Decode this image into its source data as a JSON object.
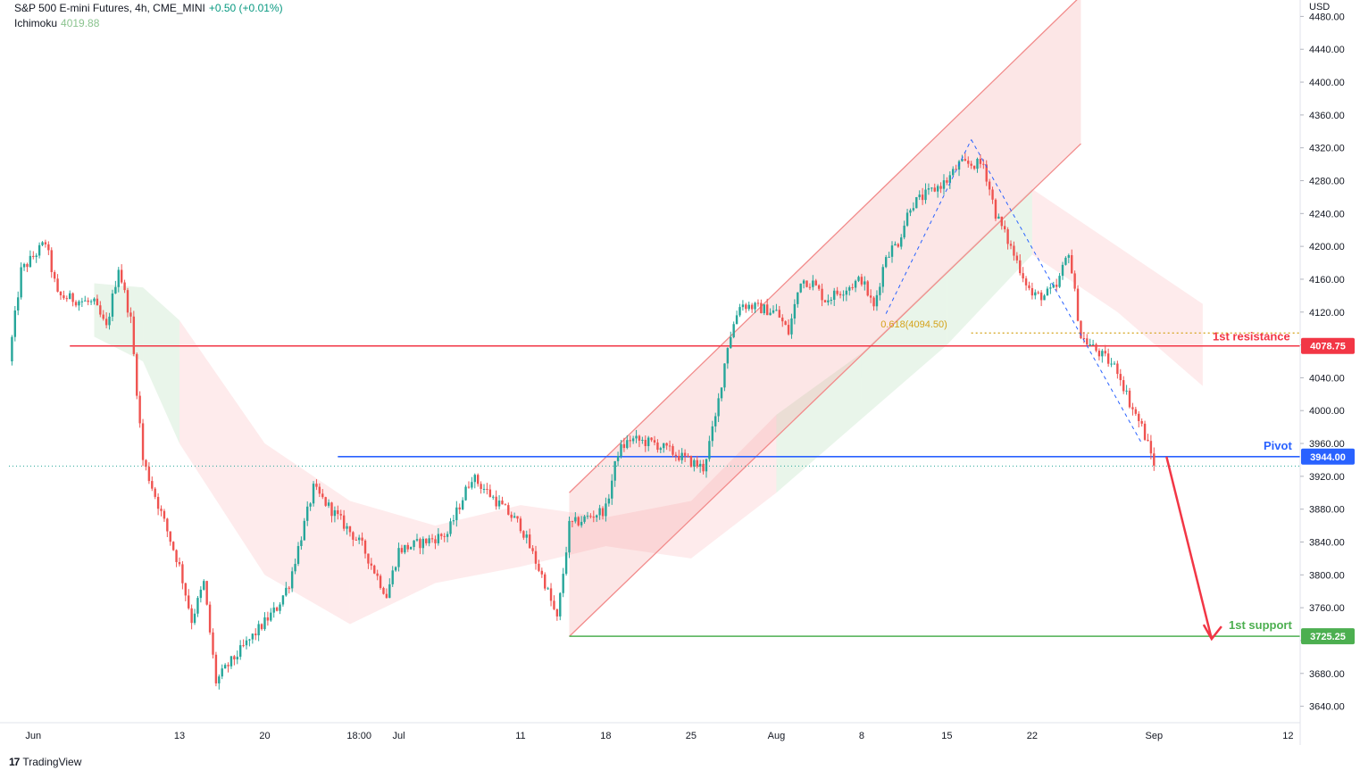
{
  "header": {
    "symbol_line": "S&P 500 E-mini Futures, 4h, CME_MINI",
    "change": "+0.50 (+0.01%)",
    "indicator_name": "Ichimoku",
    "indicator_value": "4019.88"
  },
  "brand": {
    "logo_text": "17",
    "name": "TradingView"
  },
  "colors": {
    "up": "#26a69a",
    "down": "#ef5350",
    "resistance": "#f23645",
    "pivot": "#2962ff",
    "support": "#4caf50",
    "fib": "#d4a21a",
    "channel": "#f28b8b"
  },
  "chart_data": {
    "type": "candlestick",
    "currency_label": "USD",
    "y_range": [
      3620,
      4500
    ],
    "y_ticks": [
      "4480.00",
      "4440.00",
      "4400.00",
      "4360.00",
      "4320.00",
      "4280.00",
      "4240.00",
      "4200.00",
      "4160.00",
      "4120.00",
      "4080.00",
      "4040.00",
      "4000.00",
      "3960.00",
      "3920.00",
      "3880.00",
      "3840.00",
      "3800.00",
      "3760.00",
      "3720.00",
      "3680.00",
      "3640.00"
    ],
    "x_ticks": [
      "Jun",
      "13",
      "20",
      "18:00",
      "Jul",
      "11",
      "18",
      "25",
      "Aug",
      "8",
      "15",
      "22",
      "Sep",
      "12"
    ],
    "price_anchors": [
      [
        "2022-05-30",
        4060
      ],
      [
        "2022-05-31",
        4170
      ],
      [
        "2022-06-02",
        4205
      ],
      [
        "2022-06-03",
        4140
      ],
      [
        "2022-06-06",
        4130
      ],
      [
        "2022-06-07",
        4100
      ],
      [
        "2022-06-08",
        4175
      ],
      [
        "2022-06-09",
        4110
      ],
      [
        "2022-06-10",
        3940
      ],
      [
        "2022-06-13",
        3810
      ],
      [
        "2022-06-14",
        3745
      ],
      [
        "2022-06-15",
        3790
      ],
      [
        "2022-06-16",
        3670
      ],
      [
        "2022-06-17",
        3690
      ],
      [
        "2022-06-21",
        3760
      ],
      [
        "2022-06-22",
        3790
      ],
      [
        "2022-06-24",
        3905
      ],
      [
        "2022-06-28",
        3835
      ],
      [
        "2022-06-30",
        3775
      ],
      [
        "2022-07-01",
        3830
      ],
      [
        "2022-07-05",
        3850
      ],
      [
        "2022-07-07",
        3920
      ],
      [
        "2022-07-08",
        3905
      ],
      [
        "2022-07-11",
        3860
      ],
      [
        "2022-07-13",
        3790
      ],
      [
        "2022-07-14",
        3745
      ],
      [
        "2022-07-15",
        3860
      ],
      [
        "2022-07-18",
        3880
      ],
      [
        "2022-07-19",
        3950
      ],
      [
        "2022-07-20",
        3965
      ],
      [
        "2022-07-22",
        3960
      ],
      [
        "2022-07-26",
        3930
      ],
      [
        "2022-07-27",
        3990
      ],
      [
        "2022-07-28",
        4080
      ],
      [
        "2022-07-29",
        4130
      ],
      [
        "2022-08-01",
        4120
      ],
      [
        "2022-08-02",
        4095
      ],
      [
        "2022-08-03",
        4160
      ],
      [
        "2022-08-04",
        4155
      ],
      [
        "2022-08-05",
        4135
      ],
      [
        "2022-08-08",
        4160
      ],
      [
        "2022-08-09",
        4125
      ],
      [
        "2022-08-10",
        4190
      ],
      [
        "2022-08-11",
        4205
      ],
      [
        "2022-08-12",
        4250
      ],
      [
        "2022-08-15",
        4280
      ],
      [
        "2022-08-16",
        4300
      ],
      [
        "2022-08-17",
        4300
      ],
      [
        "2022-08-18",
        4300
      ],
      [
        "2022-08-19",
        4240
      ],
      [
        "2022-08-22",
        4140
      ],
      [
        "2022-08-23",
        4140
      ],
      [
        "2022-08-24",
        4150
      ],
      [
        "2022-08-25",
        4195
      ],
      [
        "2022-08-26",
        4090
      ],
      [
        "2022-08-29",
        4050
      ],
      [
        "2022-08-30",
        4010
      ],
      [
        "2022-08-31",
        3980
      ],
      [
        "2022-09-01",
        3936
      ]
    ],
    "ichimoku_cloud_upper": [
      [
        "2022-06-06",
        4155
      ],
      [
        "2022-06-10",
        4150
      ],
      [
        "2022-06-13",
        4110
      ],
      [
        "2022-06-20",
        3960
      ],
      [
        "2022-06-27",
        3890
      ],
      [
        "2022-07-04",
        3860
      ],
      [
        "2022-07-11",
        3885
      ],
      [
        "2022-07-18",
        3870
      ],
      [
        "2022-07-25",
        3890
      ],
      [
        "2022-08-01",
        3995
      ],
      [
        "2022-08-08",
        4070
      ],
      [
        "2022-08-15",
        4170
      ],
      [
        "2022-08-22",
        4270
      ],
      [
        "2022-08-29",
        4200
      ],
      [
        "2022-09-05",
        4130
      ]
    ],
    "ichimoku_cloud_lower": [
      [
        "2022-06-06",
        4090
      ],
      [
        "2022-06-10",
        4060
      ],
      [
        "2022-06-13",
        3960
      ],
      [
        "2022-06-20",
        3800
      ],
      [
        "2022-06-27",
        3740
      ],
      [
        "2022-07-04",
        3790
      ],
      [
        "2022-07-11",
        3810
      ],
      [
        "2022-07-18",
        3835
      ],
      [
        "2022-07-25",
        3820
      ],
      [
        "2022-08-01",
        3900
      ],
      [
        "2022-08-08",
        3990
      ],
      [
        "2022-08-15",
        4080
      ],
      [
        "2022-08-22",
        4190
      ],
      [
        "2022-08-29",
        4120
      ],
      [
        "2022-09-05",
        4030
      ]
    ],
    "levels": [
      {
        "name": "1st resistance",
        "value": 4078.75,
        "label": "4078.75",
        "color": "#f23645"
      },
      {
        "name": "Pivot",
        "value": 3944.0,
        "label": "3944.00",
        "color": "#2962ff"
      },
      {
        "name": "1st support",
        "value": 3725.25,
        "label": "3725.25",
        "color": "#4caf50"
      }
    ],
    "fib": {
      "label": "0.618(4094.50)",
      "value": 4094.5
    },
    "current_price": 3932.5,
    "channel": {
      "lower_line": [
        [
          "2022-07-15",
          3725
        ],
        [
          "2022-08-26",
          4325
        ]
      ],
      "upper_line": [
        [
          "2022-07-15",
          3900
        ],
        [
          "2022-08-26",
          4505
        ]
      ]
    },
    "swing_lines": [
      [
        [
          "2022-08-10",
          4118
        ],
        [
          "2022-08-17",
          4330
        ]
      ],
      [
        [
          "2022-08-17",
          4330
        ],
        [
          "2022-08-31",
          3960
        ]
      ]
    ],
    "forecast_arrow": [
      [
        "2022-09-01",
        3944
      ],
      [
        "2022-09-05",
        3722
      ]
    ]
  }
}
